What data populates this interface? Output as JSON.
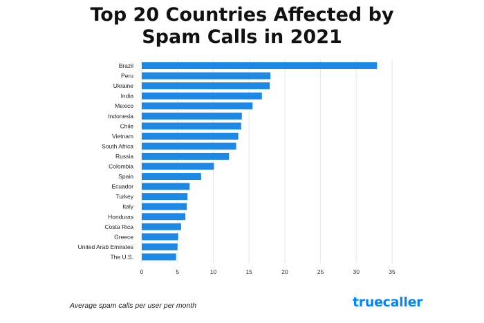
{
  "title_line1": "Top 20 Countries Affected by",
  "title_line2": "Spam Calls in 2021",
  "chart_data": {
    "type": "bar",
    "orientation": "horizontal",
    "title": "Top 20 Countries Affected by Spam Calls in 2021",
    "categories": [
      "Brazil",
      "Peru",
      "Ukraine",
      "India",
      "Mexico",
      "Indonesia",
      "Chile",
      "Vietnam",
      "South Africa",
      "Russia",
      "Colombia",
      "Spain",
      "Ecuador",
      "Turkey",
      "Italy",
      "Honduras",
      "Costa Rica",
      "Greece",
      "United Arab Emirates",
      "The U.S."
    ],
    "values": [
      32.9,
      18.0,
      17.9,
      16.8,
      15.5,
      14.0,
      13.9,
      13.5,
      13.2,
      12.2,
      10.1,
      8.3,
      6.7,
      6.4,
      6.3,
      6.1,
      5.5,
      5.1,
      5.0,
      4.8
    ],
    "xticks": [
      0,
      5,
      10,
      15,
      20,
      25,
      30,
      35
    ],
    "xlim": [
      0,
      35
    ],
    "xlabel": "Average spam calls per user per month",
    "ylabel": "",
    "grid": true,
    "bar_color": "#1e88e5",
    "grid_color": "#e6e6e6"
  },
  "footnote": "Average spam calls per user per month",
  "brand": "truecaller",
  "brand_color": "#0087ff"
}
